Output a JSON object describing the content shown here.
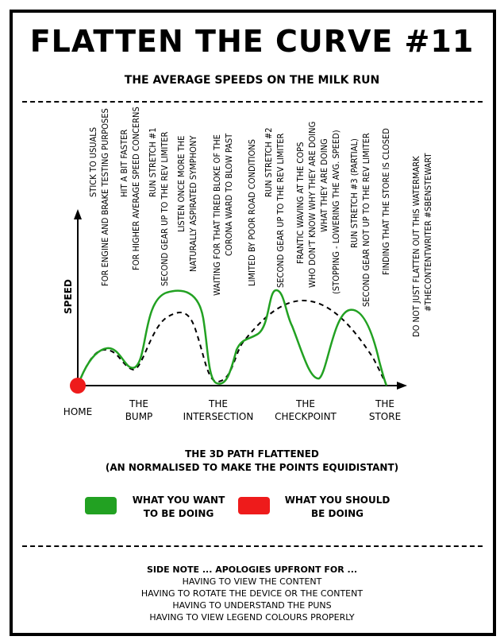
{
  "title": "FLATTEN THE CURVE #11",
  "subtitle": "THE AVERAGE SPEEDS ON THE MILK RUN",
  "colors": {
    "green": "#22a122",
    "red": "#ee1b1b",
    "ink": "#000000"
  },
  "chart_data": {
    "type": "line",
    "ylabel": "SPEED",
    "series": [
      {
        "name": "WHAT YOU WANT TO BE DOING",
        "color": "#22a122",
        "style": "solid"
      },
      {
        "name": "WHAT YOU SHOULD BE DOING",
        "color": "#000000",
        "style": "dashed"
      }
    ],
    "checkpoints": [
      "HOME",
      "THE BUMP",
      "THE INTERSECTION",
      "THE CHECKPOINT",
      "THE STORE"
    ],
    "annotations": [
      [
        "STICK TO USUALS",
        "FOR ENGINE AND BRAKE TESTING PURPOSES"
      ],
      [
        "HIT A BIT FASTER",
        "FOR HIGHER AVERAGE SPEED CONCERNS"
      ],
      [
        "RUN STRETCH #1",
        "SECOND GEAR UP TO THE REV LIMITER"
      ],
      [
        "LISTEN ONCE MORE THE",
        "NATURALLY ASPIRATED SYMPHONY"
      ],
      [
        "WAITING FOR THAT TIRED BLOKE OF THE",
        "CORONA WARD TO BLOW PAST"
      ],
      [
        "LIMITED BY POOR ROAD CONDITIONS"
      ],
      [
        "RUN STRETCH #2",
        "SECOND GEAR UP TO THE REV LIMITER"
      ],
      [
        "FRANTIC WAVING AT THE COPS",
        "WHO DON'T KNOW WHY THEY ARE DOING",
        "WHAT THEY ARE DOING",
        "(STOPPING - LOWERING THE AVG. SPEED)"
      ],
      [
        "RUN STRETCH #3 (PARTIAL)",
        "SECOND GEAR NOT UP TO THE REV LIMITER"
      ],
      [
        "FINDING THAT THE STORE IS CLOSED"
      ],
      [
        "DO NOT JUST FLATTEN OUT THIS WATERMARK",
        "#THECONTENTWRITER #SBENSTEWART"
      ]
    ]
  },
  "flat_note": [
    "THE 3D PATH FLATTENED",
    "(AN NORMALISED TO MAKE THE POINTS EQUIDISTANT)"
  ],
  "legend": {
    "want": [
      "WHAT YOU WANT",
      "TO BE DOING"
    ],
    "should": [
      "WHAT YOU SHOULD",
      "BE DOING"
    ]
  },
  "side_note": {
    "heading": "SIDE NOTE ... APOLOGIES UPFRONT FOR ...",
    "lines": [
      "HAVING TO VIEW THE CONTENT",
      "HAVING TO ROTATE THE DEVICE OR THE CONTENT",
      "HAVING TO UNDERSTAND THE PUNS",
      "HAVING TO VIEW LEGEND COLOURS PROPERLY"
    ]
  }
}
